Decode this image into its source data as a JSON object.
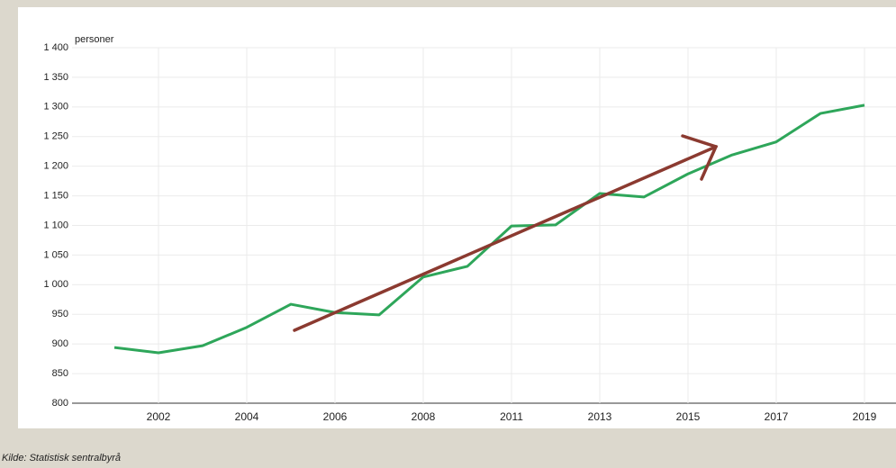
{
  "chart_data": {
    "type": "line",
    "y_label": "personer",
    "source": "Kilde:  Statistisk sentralbyrå",
    "categories": [
      null,
      "2002",
      null,
      "2004",
      null,
      "2006",
      null,
      "2008",
      null,
      "2011",
      null,
      "2013",
      null,
      "2015",
      null,
      "2017",
      null,
      "2019"
    ],
    "series": [
      {
        "color": "#2ea65a",
        "values": [
          894,
          885,
          897,
          928,
          967,
          953,
          949,
          1013,
          1031,
          1099,
          1101,
          1154,
          1148,
          1187,
          1219,
          1241,
          1289,
          1303
        ]
      }
    ],
    "ylim": [
      800,
      1400
    ],
    "yticks": [
      800,
      850,
      900,
      950,
      {
        "value": 1000,
        "label": "1 000"
      },
      {
        "value": 1050,
        "label": "1 050"
      },
      {
        "value": 1100,
        "label": "1 100"
      },
      {
        "value": 1150,
        "label": "1 150"
      },
      {
        "value": 1200,
        "label": "1 200"
      },
      {
        "value": 1250,
        "label": "1 250"
      },
      {
        "value": 1300,
        "label": "1 300"
      },
      {
        "value": 1350,
        "label": "1 350"
      },
      {
        "value": 1400,
        "label": "1 400"
      }
    ],
    "grid": true
  }
}
